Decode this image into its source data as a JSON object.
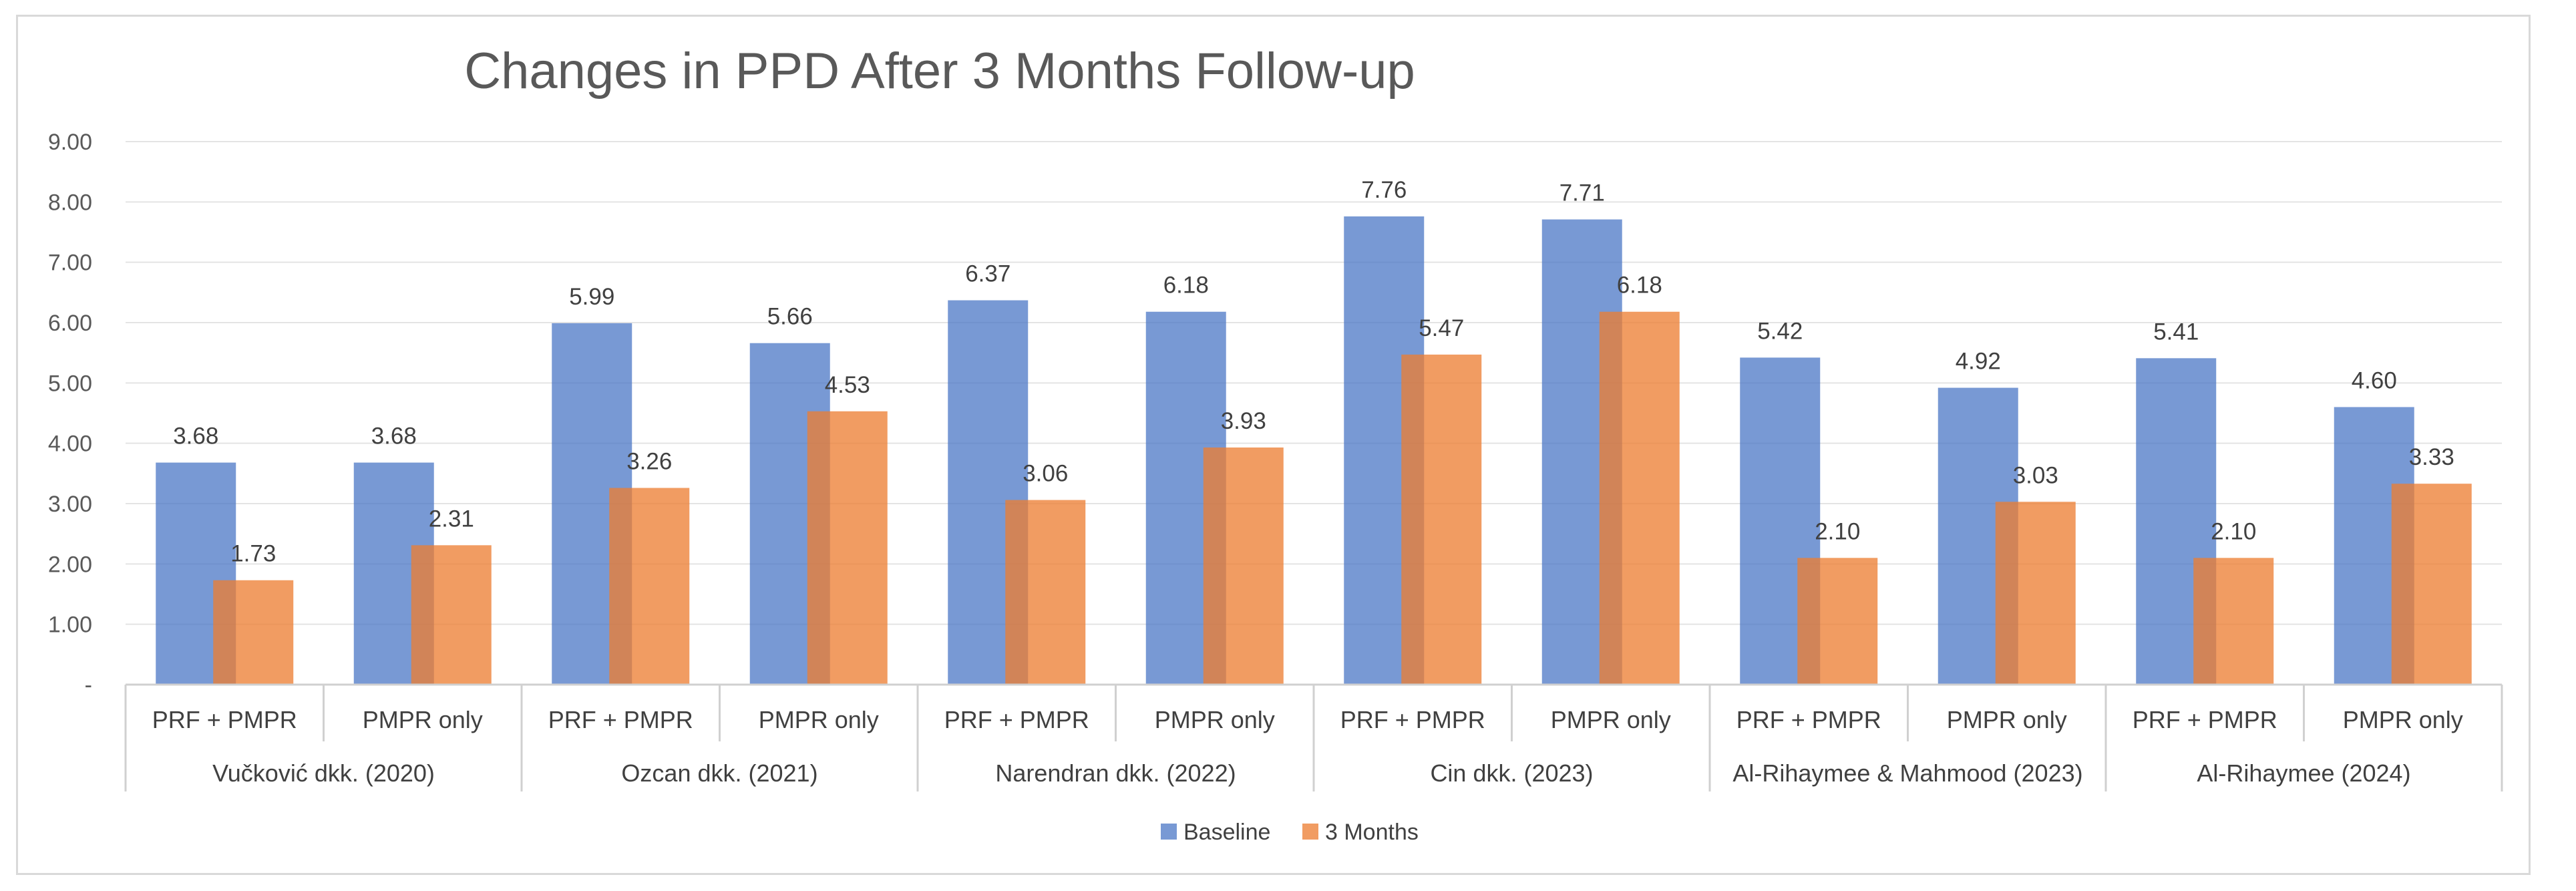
{
  "chart_data": {
    "type": "bar",
    "title": "Changes in PPD After 3 Months Follow-up",
    "xlabel": "",
    "ylabel": "",
    "ylim": [
      0,
      9
    ],
    "yticks": [
      "-",
      "1.00",
      "2.00",
      "3.00",
      "4.00",
      "5.00",
      "6.00",
      "7.00",
      "8.00",
      "9.00"
    ],
    "groups": [
      "Vučković dkk. (2020)",
      "Ozcan dkk. (2021)",
      "Narendran dkk. (2022)",
      "Cin dkk. (2023)",
      "Al-Rihaymee & Mahmood (2023)",
      "Al-Rihaymee (2024)"
    ],
    "categories": [
      "PRF + PMPR",
      "PMPR only",
      "PRF + PMPR",
      "PMPR only",
      "PRF + PMPR",
      "PMPR only",
      "PRF + PMPR",
      "PMPR only",
      "PRF + PMPR",
      "PMPR only",
      "PRF + PMPR",
      "PMPR only"
    ],
    "series": [
      {
        "name": "Baseline",
        "color": "#4472c4",
        "values": [
          3.68,
          3.68,
          5.99,
          5.66,
          6.37,
          6.18,
          7.76,
          7.71,
          5.42,
          4.92,
          5.41,
          4.6
        ],
        "labels": [
          "3.68",
          "3.68",
          "5.99",
          "5.66",
          "6.37",
          "6.18",
          "7.76",
          "7.71",
          "5.42",
          "4.92",
          "5.41",
          "4.60"
        ]
      },
      {
        "name": "3 Months",
        "color": "#ed7d31",
        "values": [
          1.73,
          2.31,
          3.26,
          4.53,
          3.06,
          3.93,
          5.47,
          6.18,
          2.1,
          3.03,
          2.1,
          3.33
        ],
        "labels": [
          "1.73",
          "2.31",
          "3.26",
          "4.53",
          "3.06",
          "3.93",
          "5.47",
          "6.18",
          "2.10",
          "3.03",
          "2.10",
          "3.33"
        ]
      }
    ],
    "legend_position": "bottom",
    "grid": true
  }
}
